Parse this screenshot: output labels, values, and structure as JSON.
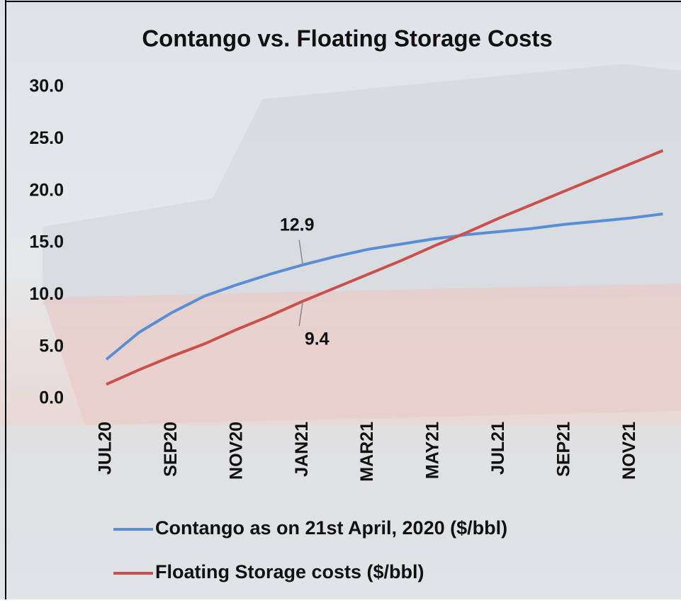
{
  "chart_data": {
    "type": "line",
    "title": "Contango vs. Floating Storage Costs",
    "categories": [
      "JUL20",
      null,
      "SEP20",
      null,
      "NOV20",
      null,
      "JAN21",
      null,
      "MAR21",
      null,
      "MAY21",
      null,
      "JUL21",
      null,
      "SEP21",
      null,
      "NOV21",
      null
    ],
    "series": [
      {
        "name": "Contango as on 21st April, 2020 ($/bbl)",
        "color": "#5a8ed4",
        "values": [
          3.8,
          6.4,
          8.3,
          9.9,
          11.0,
          12.0,
          12.9,
          13.7,
          14.4,
          14.9,
          15.4,
          15.8,
          16.1,
          16.4,
          16.8,
          17.1,
          17.4,
          17.8
        ],
        "value_labels": [
          null,
          null,
          null,
          null,
          null,
          null,
          "12.9",
          null,
          null,
          null,
          null,
          null,
          null,
          null,
          null,
          null,
          null,
          null
        ]
      },
      {
        "name": "Floating Storage costs ($/bbl)",
        "color": "#c9504b",
        "values": [
          1.4,
          2.8,
          4.1,
          5.3,
          6.7,
          8.0,
          9.4,
          10.7,
          12.0,
          13.3,
          14.7,
          16.0,
          17.4,
          18.7,
          20.0,
          21.3,
          22.6,
          23.9
        ],
        "value_labels": [
          null,
          null,
          null,
          null,
          null,
          null,
          "9.4",
          null,
          null,
          null,
          null,
          null,
          null,
          null,
          null,
          null,
          null,
          null
        ]
      }
    ],
    "ylim": [
      0,
      30
    ],
    "yticks": [
      {
        "value": 0,
        "label": "0.0"
      },
      {
        "value": 5,
        "label": "5.0"
      },
      {
        "value": 10,
        "label": "10.0"
      },
      {
        "value": 15,
        "label": "15.0"
      },
      {
        "value": 20,
        "label": "20.0"
      },
      {
        "value": 25,
        "label": "25.0"
      },
      {
        "value": 30,
        "label": "30.0"
      }
    ],
    "grid": false,
    "legend": "bottom"
  }
}
